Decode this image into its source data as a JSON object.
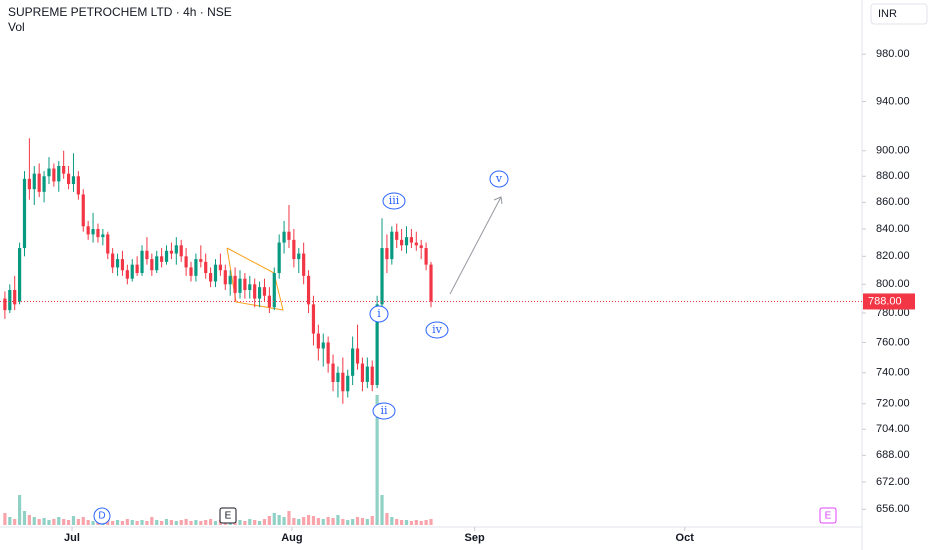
{
  "chart_data": {
    "type": "candlestick",
    "title": "SUPREME PETROCHEM LTD · 4h · NSE",
    "volume_label": "Vol",
    "currency": "INR",
    "log_scale": true,
    "up_color": "#089981",
    "down_color": "#f23645",
    "ylim": [
      647,
      1028
    ],
    "yticks": [
      {
        "value": 656,
        "label": "656.00"
      },
      {
        "value": 672,
        "label": "672.00"
      },
      {
        "value": 688,
        "label": "688.00"
      },
      {
        "value": 704,
        "label": "704.00"
      },
      {
        "value": 720,
        "label": "720.00"
      },
      {
        "value": 740,
        "label": "740.00"
      },
      {
        "value": 760,
        "label": "760.00"
      },
      {
        "value": 780,
        "label": "780.00"
      },
      {
        "value": 800,
        "label": "800.00"
      },
      {
        "value": 820,
        "label": "820.00"
      },
      {
        "value": 840,
        "label": "840.00"
      },
      {
        "value": 860,
        "label": "860.00"
      },
      {
        "value": 880,
        "label": "880.00"
      },
      {
        "value": 900,
        "label": "900.00"
      },
      {
        "value": 940,
        "label": "940.00"
      },
      {
        "value": 980,
        "label": "980.00"
      }
    ],
    "xlim": [
      -1,
      175
    ],
    "xticks": [
      {
        "value": 13.7,
        "label": "Jul"
      },
      {
        "value": 58.6,
        "label": "Aug"
      },
      {
        "value": 95.9,
        "label": "Sep"
      },
      {
        "value": 138.8,
        "label": "Oct"
      }
    ],
    "last_price": {
      "value": 788,
      "label": "788.00"
    },
    "ohlc": [
      [
        790,
        795,
        776,
        782
      ],
      [
        782,
        800,
        780,
        796
      ],
      [
        796,
        806,
        782,
        786
      ],
      [
        788,
        830,
        786,
        826
      ],
      [
        826,
        884,
        820,
        878
      ],
      [
        878,
        910,
        862,
        870
      ],
      [
        870,
        888,
        858,
        882
      ],
      [
        882,
        890,
        864,
        868
      ],
      [
        868,
        884,
        860,
        880
      ],
      [
        880,
        895,
        874,
        886
      ],
      [
        886,
        890,
        872,
        876
      ],
      [
        876,
        892,
        868,
        888
      ],
      [
        888,
        900,
        878,
        882
      ],
      [
        882,
        888,
        870,
        874
      ],
      [
        874,
        898,
        868,
        880
      ],
      [
        880,
        884,
        862,
        866
      ],
      [
        866,
        870,
        838,
        842
      ],
      [
        842,
        846,
        832,
        836
      ],
      [
        836,
        852,
        830,
        840
      ],
      [
        840,
        844,
        830,
        834
      ],
      [
        834,
        840,
        828,
        836
      ],
      [
        836,
        838,
        818,
        822
      ],
      [
        822,
        826,
        808,
        812
      ],
      [
        812,
        822,
        806,
        818
      ],
      [
        818,
        824,
        806,
        810
      ],
      [
        810,
        814,
        800,
        804
      ],
      [
        804,
        818,
        802,
        814
      ],
      [
        814,
        820,
        806,
        808
      ],
      [
        808,
        828,
        806,
        824
      ],
      [
        824,
        834,
        814,
        818
      ],
      [
        818,
        822,
        806,
        810
      ],
      [
        810,
        824,
        808,
        820
      ],
      [
        820,
        826,
        812,
        816
      ],
      [
        816,
        828,
        814,
        824
      ],
      [
        824,
        830,
        818,
        822
      ],
      [
        822,
        834,
        814,
        828
      ],
      [
        828,
        832,
        816,
        820
      ],
      [
        820,
        826,
        806,
        812
      ],
      [
        812,
        816,
        802,
        806
      ],
      [
        806,
        822,
        802,
        818
      ],
      [
        818,
        828,
        812,
        816
      ],
      [
        816,
        822,
        804,
        808
      ],
      [
        808,
        812,
        798,
        802
      ],
      [
        802,
        818,
        798,
        814
      ],
      [
        814,
        822,
        806,
        810
      ],
      [
        810,
        814,
        796,
        800
      ],
      [
        800,
        810,
        792,
        806
      ],
      [
        806,
        812,
        788,
        794
      ],
      [
        794,
        810,
        790,
        804
      ],
      [
        804,
        808,
        790,
        796
      ],
      [
        796,
        806,
        790,
        800
      ],
      [
        800,
        804,
        784,
        790
      ],
      [
        790,
        802,
        784,
        798
      ],
      [
        798,
        804,
        788,
        792
      ],
      [
        792,
        798,
        780,
        784
      ],
      [
        784,
        812,
        782,
        808
      ],
      [
        808,
        836,
        804,
        830
      ],
      [
        830,
        846,
        822,
        838
      ],
      [
        838,
        858,
        826,
        832
      ],
      [
        832,
        840,
        812,
        818
      ],
      [
        818,
        826,
        808,
        822
      ],
      [
        822,
        830,
        800,
        806
      ],
      [
        806,
        810,
        780,
        786
      ],
      [
        786,
        792,
        758,
        766
      ],
      [
        766,
        772,
        748,
        756
      ],
      [
        756,
        766,
        744,
        760
      ],
      [
        760,
        764,
        740,
        746
      ],
      [
        746,
        752,
        728,
        734
      ],
      [
        734,
        744,
        724,
        740
      ],
      [
        740,
        750,
        720,
        728
      ],
      [
        728,
        742,
        724,
        738
      ],
      [
        738,
        764,
        732,
        756
      ],
      [
        756,
        772,
        742,
        746
      ],
      [
        746,
        750,
        728,
        734
      ],
      [
        734,
        750,
        730,
        744
      ],
      [
        744,
        748,
        728,
        732
      ],
      [
        732,
        792,
        730,
        786
      ],
      [
        786,
        848,
        784,
        826
      ],
      [
        826,
        836,
        808,
        818
      ],
      [
        818,
        842,
        814,
        838
      ],
      [
        838,
        844,
        826,
        832
      ],
      [
        832,
        840,
        824,
        828
      ],
      [
        828,
        842,
        822,
        834
      ],
      [
        834,
        840,
        826,
        830
      ],
      [
        830,
        838,
        824,
        828
      ],
      [
        828,
        832,
        818,
        826
      ],
      [
        826,
        830,
        810,
        814
      ],
      [
        814,
        816,
        784,
        788
      ]
    ],
    "volume": [
      12,
      8,
      6,
      30,
      14,
      10,
      8,
      6,
      7,
      5,
      6,
      8,
      6,
      5,
      9,
      6,
      8,
      5,
      4,
      6,
      5,
      7,
      4,
      5,
      4,
      6,
      5,
      4,
      5,
      4,
      8,
      5,
      4,
      6,
      5,
      4,
      5,
      6,
      4,
      5,
      4,
      5,
      6,
      4,
      5,
      4,
      5,
      6,
      5,
      4,
      6,
      5,
      4,
      6,
      9,
      12,
      10,
      8,
      14,
      7,
      6,
      8,
      10,
      9,
      7,
      6,
      8,
      7,
      10,
      6,
      5,
      6,
      8,
      7,
      6,
      9,
      130,
      30,
      12,
      8,
      6,
      5,
      5,
      4,
      5,
      4,
      5,
      6
    ],
    "wave_labels": [
      "i",
      "ii",
      "iii",
      "iv",
      "v"
    ],
    "markers": [
      "D",
      "E",
      "E"
    ]
  }
}
